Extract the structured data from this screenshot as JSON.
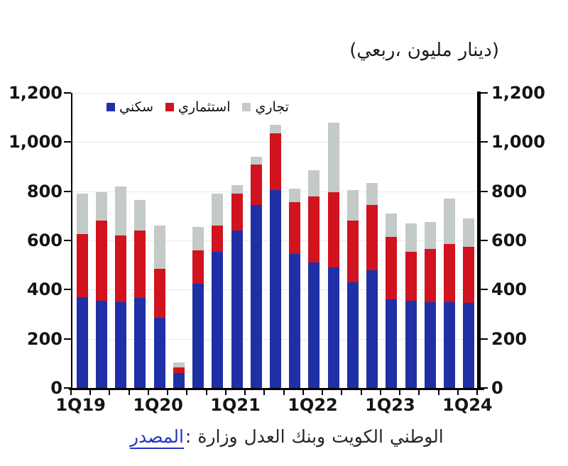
{
  "title": {
    "tokens": [
      "(ربعي،",
      "مليون",
      "دينار)"
    ],
    "meaning": "(quarterly, KD million)"
  },
  "source": {
    "label": "المصدر",
    "colon": ":",
    "tokens": [
      "وزارة",
      "العدل",
      "وبنك",
      "الكويت",
      "الوطني"
    ],
    "link_color": "#2433c4"
  },
  "chart_data": {
    "type": "bar",
    "stacked": true,
    "title": "(ربعي، مليون دينار)",
    "categories": [
      "1Q19",
      "2Q19",
      "3Q19",
      "4Q19",
      "1Q20",
      "2Q20",
      "3Q20",
      "4Q20",
      "1Q21",
      "2Q21",
      "3Q21",
      "4Q21",
      "1Q22",
      "2Q22",
      "3Q22",
      "4Q22",
      "1Q23",
      "2Q23",
      "3Q23",
      "4Q23",
      "1Q24"
    ],
    "x_axis_labels_shown": [
      "1Q19",
      "1Q20",
      "1Q21",
      "1Q22",
      "1Q23",
      "1Q24"
    ],
    "series": [
      {
        "name": "سكني",
        "color": "#1f2fa6",
        "values": [
          370,
          355,
          350,
          365,
          285,
          60,
          425,
          555,
          640,
          745,
          805,
          545,
          510,
          490,
          430,
          480,
          360,
          355,
          350,
          350,
          345
        ]
      },
      {
        "name": "استثماري",
        "color": "#d0131f",
        "values": [
          255,
          325,
          270,
          275,
          200,
          25,
          135,
          105,
          150,
          165,
          230,
          210,
          270,
          305,
          250,
          265,
          255,
          200,
          215,
          235,
          230
        ]
      },
      {
        "name": "تجاري",
        "color": "#c4cac7",
        "values": [
          165,
          115,
          200,
          125,
          175,
          20,
          95,
          130,
          35,
          30,
          35,
          55,
          105,
          285,
          125,
          90,
          95,
          115,
          110,
          185,
          115
        ]
      }
    ],
    "ylim": [
      0,
      1200
    ],
    "y_ticks": [
      "0",
      "200",
      "400",
      "600",
      "800",
      "1,000",
      "1,200"
    ],
    "grid": true,
    "legend_position": "top-inside",
    "dual_y_axis": true
  }
}
